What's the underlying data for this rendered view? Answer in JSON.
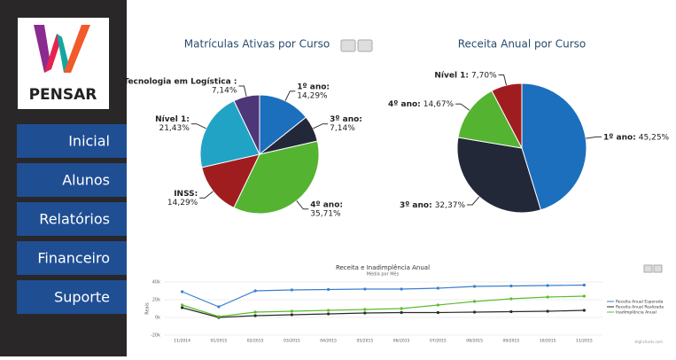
{
  "sidebar": {
    "logo_text": "PENSAR",
    "menu": [
      "Inicial",
      "Alunos",
      "Relatórios",
      "Financeiro",
      "Suporte"
    ]
  },
  "chart_data": [
    {
      "type": "pie",
      "title": "Matrículas Ativas por Curso",
      "categories": [
        "1º ano:",
        "3º ano:",
        "4º ano:",
        "INSS:",
        "Nível 1:",
        "Tecnologia em Logística :"
      ],
      "values": [
        14.29,
        7.14,
        35.71,
        14.29,
        21.43,
        7.14
      ],
      "value_labels": [
        "14,29%",
        "7,14%",
        "35,71%",
        "14,29%",
        "21,43%",
        "7,14%"
      ],
      "colors": [
        "#1c6fbd",
        "#232838",
        "#55b332",
        "#a01d1f",
        "#21a3c6",
        "#4e3778"
      ]
    },
    {
      "type": "pie",
      "title": "Receita Anual por Curso",
      "categories": [
        "1º ano:",
        "3º ano:",
        "4º ano:",
        "Nível 1:"
      ],
      "values": [
        45.25,
        32.37,
        14.67,
        7.7
      ],
      "value_labels": [
        "45,25%",
        "32,37%",
        "14,67%",
        "7,70%"
      ],
      "colors": [
        "#1c6fbd",
        "#232838",
        "#55b332",
        "#a01d1f"
      ]
    },
    {
      "type": "line",
      "title": "Receita e Inadimplência Anual",
      "subtitle": "Média por Mês",
      "y_label": "Reais",
      "categories": [
        "11/2014",
        "01/2015",
        "02/2015",
        "03/2015",
        "04/2015",
        "05/2015",
        "06/2015",
        "07/2015",
        "08/2015",
        "09/2015",
        "10/2015",
        "11/2015"
      ],
      "series": [
        {
          "name": "Receita Anual Esperada",
          "color": "#3a7fd0",
          "values": [
            29000,
            12000,
            30000,
            31000,
            31500,
            32000,
            32000,
            33000,
            35000,
            35500,
            36000,
            36500
          ]
        },
        {
          "name": "Receita Anual Realizada",
          "color": "#2b2b2b",
          "values": [
            11000,
            0,
            2000,
            3000,
            4000,
            5000,
            5500,
            5500,
            6000,
            6500,
            7000,
            8000
          ]
        },
        {
          "name": "Inadimplência Anual",
          "color": "#5cbc30",
          "values": [
            14000,
            1000,
            6000,
            7000,
            8000,
            9000,
            10000,
            14000,
            18000,
            21000,
            23000,
            24000
          ]
        }
      ],
      "ylim": [
        -20000,
        40000
      ],
      "yticks": [
        {
          "value": -20000,
          "label": "-20k"
        },
        {
          "value": 0,
          "label": "0k"
        },
        {
          "value": 20000,
          "label": "20k"
        },
        {
          "value": 40000,
          "label": "40k"
        }
      ],
      "grid": true,
      "legend": "right",
      "credits": "Highcharts.com"
    }
  ]
}
